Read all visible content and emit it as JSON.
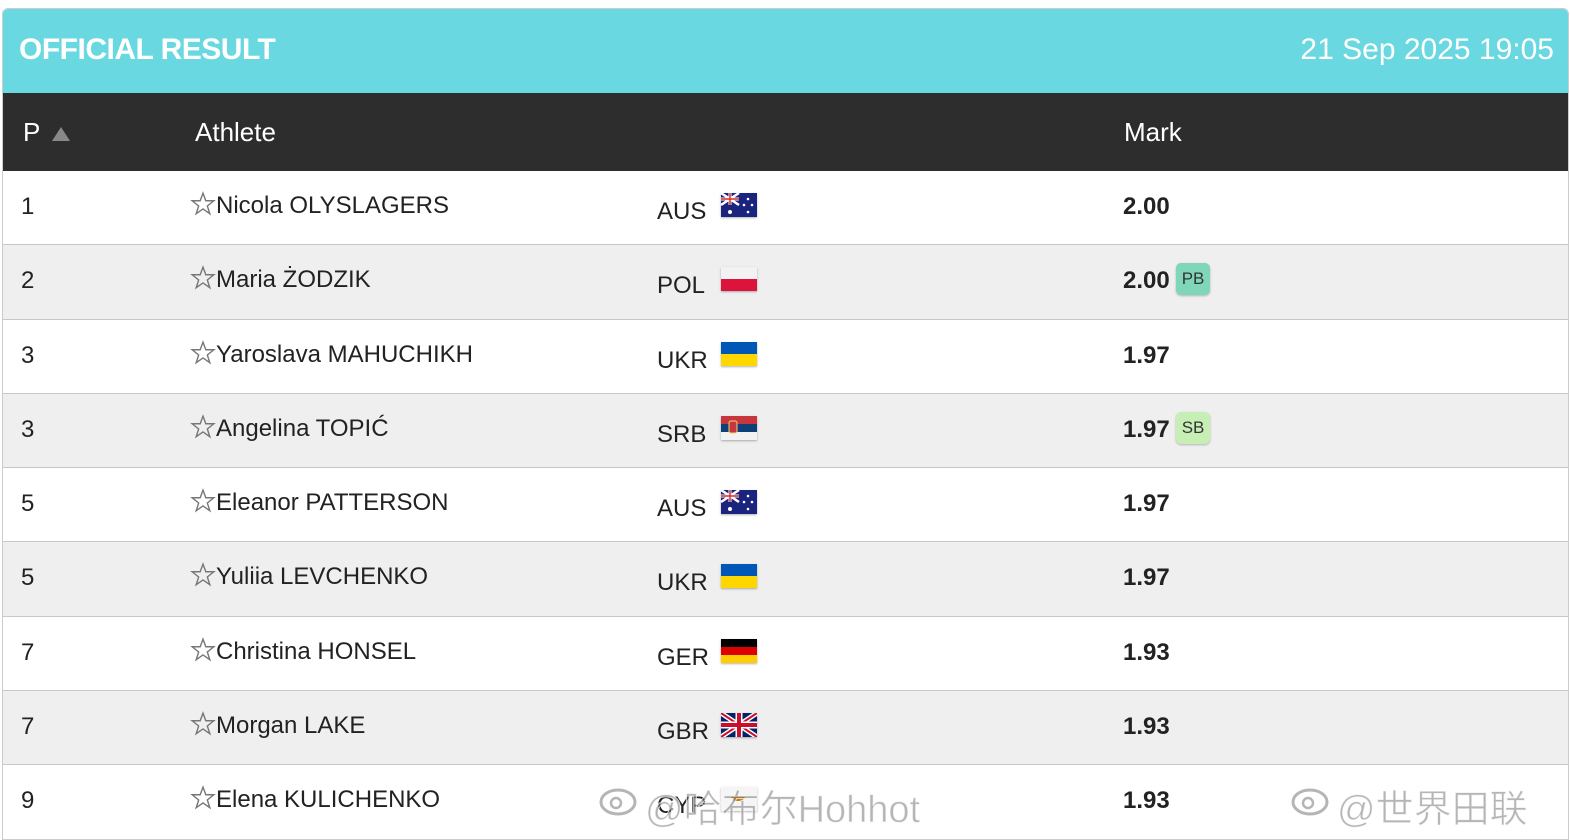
{
  "header": {
    "title": "OFFICIAL RESULT",
    "datetime": "21 Sep 2025 19:05"
  },
  "table": {
    "columns": [
      "P",
      "Athlete",
      "Mark"
    ],
    "rows": [
      {
        "position": "1",
        "athlete": "Nicola OLYSLAGERS",
        "country": "AUS",
        "mark": "2.00"
      },
      {
        "position": "2",
        "athlete": "Maria ŻODZIK",
        "country": "POL",
        "mark": "2.00",
        "badge": "PB"
      },
      {
        "position": "3",
        "athlete": "Yaroslava MAHUCHIKH",
        "country": "UKR",
        "mark": "1.97"
      },
      {
        "position": "3",
        "athlete": "Angelina TOPIĆ",
        "country": "SRB",
        "mark": "1.97",
        "badge": "SB"
      },
      {
        "position": "5",
        "athlete": "Eleanor PATTERSON",
        "country": "AUS",
        "mark": "1.97"
      },
      {
        "position": "5",
        "athlete": "Yuliia LEVCHENKO",
        "country": "UKR",
        "mark": "1.97"
      },
      {
        "position": "7",
        "athlete": "Christina HONSEL",
        "country": "GER",
        "mark": "1.93"
      },
      {
        "position": "7",
        "athlete": "Morgan LAKE",
        "country": "GBR",
        "mark": "1.93"
      },
      {
        "position": "9",
        "athlete": "Elena KULICHENKO",
        "country": "CYP",
        "mark": "1.93"
      }
    ]
  },
  "watermarks": [
    "@哈布尔Hohhot",
    "@世界田联"
  ]
}
